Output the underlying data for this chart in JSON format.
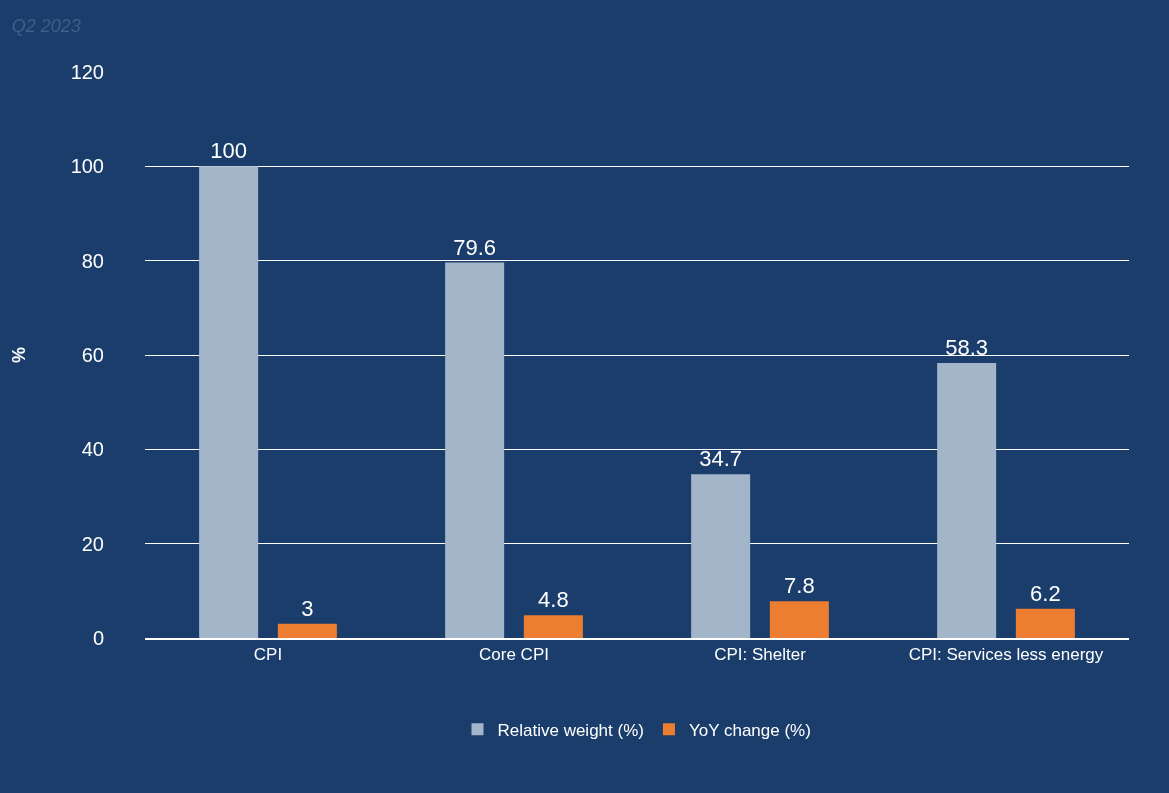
{
  "chart_data": {
    "type": "bar",
    "title": "Q2 2023",
    "ylabel": "%",
    "categories": [
      "CPI",
      "Core CPI",
      "CPI: Shelter",
      "CPI: Services less energy"
    ],
    "series": [
      {
        "name": "Relative weight (%)",
        "color": "#a2b5c9",
        "values": [
          100,
          79.6,
          34.7,
          58.3
        ]
      },
      {
        "name": "YoY change (%)",
        "color": "#ed7d31",
        "values": [
          3,
          4.8,
          7.8,
          6.2
        ]
      }
    ],
    "ylim": [
      0,
      120
    ],
    "yticks": [
      0,
      20,
      40,
      60,
      80,
      100,
      120
    ],
    "grid": "y",
    "legend": "bottom",
    "data_labels": true
  }
}
